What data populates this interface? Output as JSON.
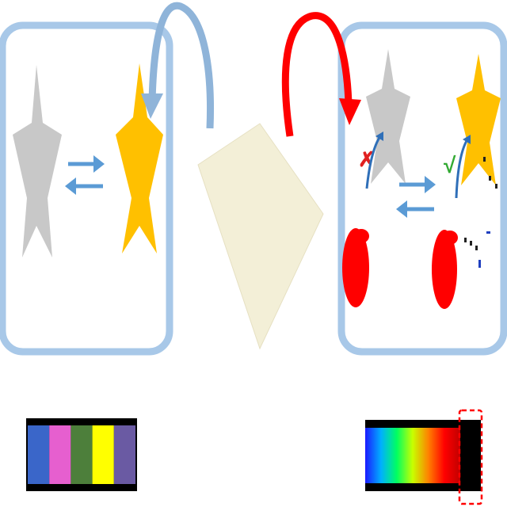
{
  "colors": {
    "panel_border": "#a8c8e8",
    "panel_fill": "#ffffff",
    "gray_star": "#c8c8c8",
    "gold_star": "#ffc000",
    "equilibrium_arrow": "#5b9bd5",
    "return_arrow": "#8fb4d9",
    "red_arrow": "#ff0000",
    "light_plate": "#f3efd7",
    "light_plate_edge": "#e6e0c2",
    "red_blob": "#ff0000",
    "cross_mark": "#e02020",
    "check_mark": "#33aa33",
    "curved_pointer": "#2f6fb8",
    "small_marks_black": "#222222",
    "small_marks_blue": "#1f3fbf"
  },
  "marks": {
    "cross": "✗",
    "check": "√"
  },
  "discrete_spectrum": {
    "bands": [
      "#3a66c9",
      "#e65fcf",
      "#4d7f3b",
      "#ffff00",
      "#6a5aa3"
    ]
  },
  "continuous_spectrum": {
    "stops": [
      "#1a1aff",
      "#00b0ff",
      "#00ff60",
      "#c8ff00",
      "#ff8000",
      "#ff0000",
      "#c00000"
    ],
    "absorbed_band_color": "#000000",
    "highlight_color": "#ff0000"
  }
}
